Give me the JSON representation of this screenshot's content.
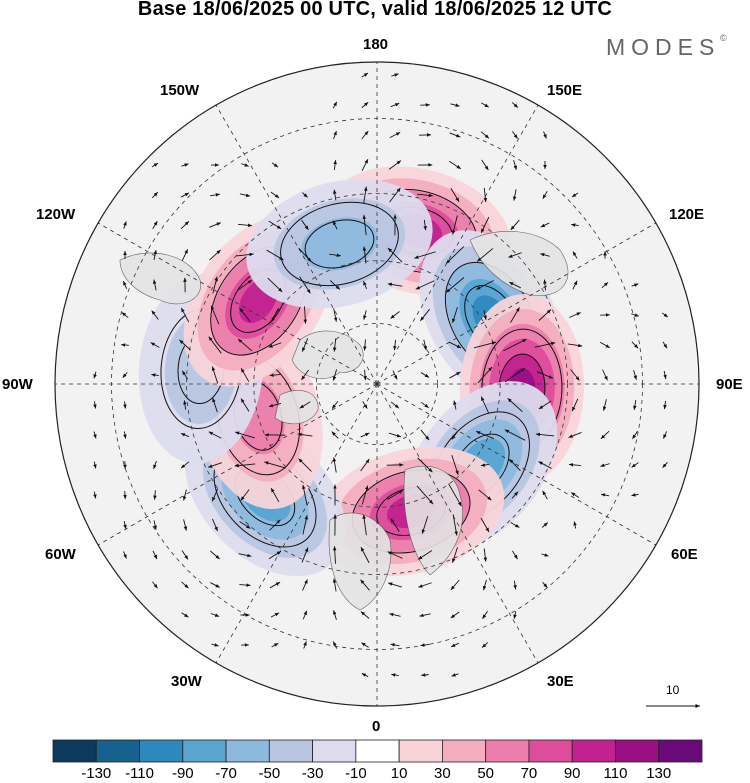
{
  "title": "Base 18/06/2025 00 UTC, valid 18/06/2025 12 UTC",
  "brand": {
    "name": "MODES",
    "mark": "©"
  },
  "longitude_labels": {
    "n180": "180",
    "e150": "150E",
    "e120": "120E",
    "e90": "90E",
    "e60": "60E",
    "e30": "30E",
    "s0": "0",
    "w30": "30W",
    "w60": "60W",
    "w90": "90W",
    "w120": "120W",
    "w150": "150W"
  },
  "vector_reference": {
    "value": "10"
  },
  "colorbar": {
    "colors": [
      "#0d3a5c",
      "#17618f",
      "#2f88bd",
      "#5aa4d2",
      "#8db9dd",
      "#b8c6e2",
      "#dcdcee",
      "#ffffff",
      "#f8d4d9",
      "#f3aebf",
      "#ec7eac",
      "#dd4d9c",
      "#c2228f",
      "#9b0f84",
      "#6a0a7a"
    ],
    "ticks": [
      "-130",
      "-110",
      "-90",
      "-70",
      "-50",
      "-30",
      "-10",
      "10",
      "30",
      "50",
      "70",
      "90",
      "110",
      "130"
    ]
  },
  "chart_data": {
    "type": "heatmap",
    "projection": "north polar stereographic",
    "field": "anomaly centres (approximate peak values, colour scale units)",
    "centers": [
      {
        "lon": 165,
        "lat": 52,
        "value": 105
      },
      {
        "lon": 120,
        "lat": 58,
        "value": -95
      },
      {
        "lon": 88,
        "lat": 55,
        "value": 115
      },
      {
        "lon": 52,
        "lat": 58,
        "value": -85
      },
      {
        "lon": 15,
        "lat": 58,
        "value": 105
      },
      {
        "lon": -45,
        "lat": 52,
        "value": -80
      },
      {
        "lon": -75,
        "lat": 60,
        "value": 55
      },
      {
        "lon": -95,
        "lat": 48,
        "value": -40
      },
      {
        "lon": -125,
        "lat": 55,
        "value": 95
      },
      {
        "lon": -165,
        "lat": 55,
        "value": -55
      }
    ]
  }
}
